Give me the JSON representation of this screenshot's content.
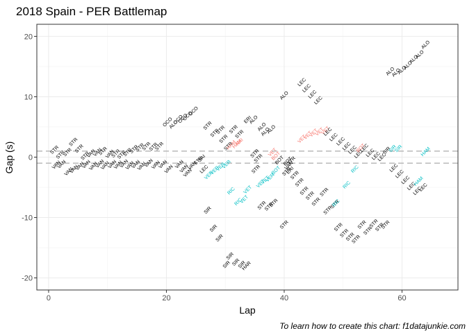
{
  "chart_data": {
    "type": "scatter",
    "title": "2018 Spain - PER Battlemap",
    "xlabel": "Lap",
    "ylabel": "Gap (s)",
    "caption": "To learn how to create this chart: f1datajunkie.com",
    "xlim": [
      -2,
      69.5
    ],
    "ylim": [
      -22,
      22
    ],
    "xticks": [
      0,
      20,
      40,
      60
    ],
    "yticks": [
      -20,
      -10,
      0,
      10,
      20
    ],
    "grid": true,
    "reference_lines": [
      1,
      -1
    ],
    "colors": {
      "ahead": "#000000",
      "pit": "#F8766D",
      "other": "#00BFC4",
      "refline": "#b3b3b3"
    },
    "points": [
      {
        "x": 1,
        "y": 1.2,
        "label": "STR",
        "group": "ahead"
      },
      {
        "x": 1.3,
        "y": -1.3,
        "label": "VAN",
        "group": "ahead"
      },
      {
        "x": 2,
        "y": 0.4,
        "label": "STR",
        "group": "ahead"
      },
      {
        "x": 2.2,
        "y": -1.2,
        "label": "VAN",
        "group": "ahead"
      },
      {
        "x": 3.2,
        "y": 0.8,
        "label": "STR",
        "group": "ahead"
      },
      {
        "x": 4.2,
        "y": 2.5,
        "label": "STR",
        "group": "ahead"
      },
      {
        "x": 3.4,
        "y": -2.4,
        "label": "VAN",
        "group": "ahead"
      },
      {
        "x": 4.3,
        "y": -2.0,
        "label": "VAN",
        "group": "ahead"
      },
      {
        "x": 5.2,
        "y": 1.4,
        "label": "STR",
        "group": "ahead"
      },
      {
        "x": 5.3,
        "y": -1.5,
        "label": "VAN",
        "group": "ahead"
      },
      {
        "x": 6.2,
        "y": 0.2,
        "label": "STR",
        "group": "ahead"
      },
      {
        "x": 6.4,
        "y": -1.2,
        "label": "VAN",
        "group": "ahead"
      },
      {
        "x": 7.2,
        "y": 0.6,
        "label": "VAN",
        "group": "ahead"
      },
      {
        "x": 7.6,
        "y": -1.5,
        "label": "VAN",
        "group": "ahead"
      },
      {
        "x": 8.3,
        "y": 0.8,
        "label": "VAN",
        "group": "ahead"
      },
      {
        "x": 8.7,
        "y": -1.1,
        "label": "VAN",
        "group": "ahead"
      },
      {
        "x": 9.2,
        "y": 1.0,
        "label": "STR",
        "group": "ahead"
      },
      {
        "x": 9.6,
        "y": -1.4,
        "label": "VAN",
        "group": "ahead"
      },
      {
        "x": 10.4,
        "y": 0.5,
        "label": "VAN",
        "group": "ahead"
      },
      {
        "x": 10.8,
        "y": -1.2,
        "label": "VAN",
        "group": "ahead"
      },
      {
        "x": 11.4,
        "y": 0.6,
        "label": "STR",
        "group": "ahead"
      },
      {
        "x": 11.8,
        "y": -1.3,
        "label": "VAN",
        "group": "ahead"
      },
      {
        "x": 12.4,
        "y": 0.4,
        "label": "STR",
        "group": "ahead"
      },
      {
        "x": 12.8,
        "y": -1.1,
        "label": "VAN",
        "group": "ahead"
      },
      {
        "x": 13.4,
        "y": 0.8,
        "label": "STR",
        "group": "ahead"
      },
      {
        "x": 13.8,
        "y": -1.4,
        "label": "VAN",
        "group": "ahead"
      },
      {
        "x": 14.5,
        "y": 1.3,
        "label": "STR",
        "group": "ahead"
      },
      {
        "x": 14.8,
        "y": -1.2,
        "label": "VAN",
        "group": "ahead"
      },
      {
        "x": 15.5,
        "y": 1.6,
        "label": "STR",
        "group": "ahead"
      },
      {
        "x": 15.8,
        "y": -1.5,
        "label": "VAN",
        "group": "ahead"
      },
      {
        "x": 16.6,
        "y": 1.8,
        "label": "STR",
        "group": "ahead"
      },
      {
        "x": 17.0,
        "y": -1.0,
        "label": "VAN",
        "group": "ahead"
      },
      {
        "x": 17.8,
        "y": 1.7,
        "label": "STR",
        "group": "ahead"
      },
      {
        "x": 18.2,
        "y": -1.3,
        "label": "VAN",
        "group": "ahead"
      },
      {
        "x": 18.8,
        "y": 1.8,
        "label": "STR",
        "group": "ahead"
      },
      {
        "x": 19.4,
        "y": -1.2,
        "label": "VAN",
        "group": "ahead"
      },
      {
        "x": 20.4,
        "y": -2.0,
        "label": "VAN",
        "group": "ahead"
      },
      {
        "x": 20.2,
        "y": 5.8,
        "label": "OCO",
        "group": "ahead"
      },
      {
        "x": 21.2,
        "y": 5.4,
        "label": "ALO",
        "group": "ahead"
      },
      {
        "x": 22.0,
        "y": 6.2,
        "label": "OCO",
        "group": "ahead"
      },
      {
        "x": 22.8,
        "y": 6.4,
        "label": "OCO",
        "group": "ahead"
      },
      {
        "x": 23.6,
        "y": 6.8,
        "label": "OCO",
        "group": "ahead"
      },
      {
        "x": 24.6,
        "y": 7.6,
        "label": "OCO",
        "group": "ahead"
      },
      {
        "x": 22.2,
        "y": -1.2,
        "label": "VAN",
        "group": "ahead"
      },
      {
        "x": 23.0,
        "y": -1.9,
        "label": "VAN",
        "group": "ahead"
      },
      {
        "x": 23.6,
        "y": -2.6,
        "label": "VAN",
        "group": "ahead"
      },
      {
        "x": 24.4,
        "y": -1.4,
        "label": "VAN",
        "group": "ahead"
      },
      {
        "x": 25.4,
        "y": -0.6,
        "label": "STR",
        "group": "ahead"
      },
      {
        "x": 26.0,
        "y": -0.2,
        "label": "SAI",
        "group": "ahead"
      },
      {
        "x": 26.4,
        "y": -2.0,
        "label": "LEC",
        "group": "ahead"
      },
      {
        "x": 27.0,
        "y": 5.2,
        "label": "STR",
        "group": "ahead"
      },
      {
        "x": 28.2,
        "y": 4.0,
        "label": "STR",
        "group": "ahead"
      },
      {
        "x": 29.2,
        "y": 4.5,
        "label": "STR",
        "group": "ahead"
      },
      {
        "x": 29.7,
        "y": 3.0,
        "label": "STR",
        "group": "ahead"
      },
      {
        "x": 30.5,
        "y": 1.8,
        "label": "STR",
        "group": "ahead"
      },
      {
        "x": 31.4,
        "y": 4.6,
        "label": "STR",
        "group": "ahead"
      },
      {
        "x": 32.4,
        "y": 3.8,
        "label": "STR",
        "group": "ahead"
      },
      {
        "x": 31.0,
        "y": 2.0,
        "label": "HAM",
        "group": "pit"
      },
      {
        "x": 32.0,
        "y": 2.2,
        "label": "HAM",
        "group": "pit"
      },
      {
        "x": 32.4,
        "y": 2.5,
        "label": "RAI",
        "group": "pit"
      },
      {
        "x": 33.8,
        "y": 6.2,
        "label": "ERI",
        "group": "ahead"
      },
      {
        "x": 34.8,
        "y": 6.2,
        "label": "ALO",
        "group": "ahead"
      },
      {
        "x": 36.8,
        "y": 4.2,
        "label": "ALO",
        "group": "ahead"
      },
      {
        "x": 37.8,
        "y": 4.6,
        "label": "ALO",
        "group": "ahead"
      },
      {
        "x": 36.2,
        "y": 5.0,
        "label": "ALO",
        "group": "ahead"
      },
      {
        "x": 35.0,
        "y": 0.6,
        "label": "STR",
        "group": "ahead"
      },
      {
        "x": 35.6,
        "y": -0.2,
        "label": "STR",
        "group": "ahead"
      },
      {
        "x": 38.0,
        "y": 0.8,
        "label": "VET",
        "group": "pit"
      },
      {
        "x": 38.6,
        "y": 0.2,
        "label": "BOT",
        "group": "pit"
      },
      {
        "x": 39.2,
        "y": -0.5,
        "label": "BOT",
        "group": "ahead"
      },
      {
        "x": 40.0,
        "y": 10.2,
        "label": "ALO",
        "group": "ahead"
      },
      {
        "x": 40.6,
        "y": -0.7,
        "label": "BOT",
        "group": "ahead"
      },
      {
        "x": 41.2,
        "y": -0.6,
        "label": "STR",
        "group": "ahead"
      },
      {
        "x": 40.8,
        "y": -1.4,
        "label": "VAN",
        "group": "ahead"
      },
      {
        "x": 41.0,
        "y": -2.2,
        "label": "ERI",
        "group": "ahead"
      },
      {
        "x": 43.0,
        "y": 12.4,
        "label": "LEC",
        "group": "ahead"
      },
      {
        "x": 43.8,
        "y": 11.4,
        "label": "LEC",
        "group": "ahead"
      },
      {
        "x": 44.8,
        "y": 10.4,
        "label": "LEC",
        "group": "ahead"
      },
      {
        "x": 45.8,
        "y": 9.4,
        "label": "LEC",
        "group": "ahead"
      },
      {
        "x": 43.0,
        "y": 3.0,
        "label": "VET",
        "group": "pit"
      },
      {
        "x": 44.0,
        "y": 3.6,
        "label": "VET",
        "group": "pit"
      },
      {
        "x": 45.0,
        "y": 4.0,
        "label": "VET",
        "group": "pit"
      },
      {
        "x": 46.0,
        "y": 4.2,
        "label": "VET",
        "group": "pit"
      },
      {
        "x": 47.0,
        "y": 4.4,
        "label": "VET",
        "group": "pit"
      },
      {
        "x": 47.4,
        "y": 4.2,
        "label": "LEC",
        "group": "ahead"
      },
      {
        "x": 48.4,
        "y": 3.3,
        "label": "LEC",
        "group": "ahead"
      },
      {
        "x": 49.6,
        "y": 2.6,
        "label": "LEC",
        "group": "ahead"
      },
      {
        "x": 50.6,
        "y": 1.8,
        "label": "LEC",
        "group": "ahead"
      },
      {
        "x": 51.6,
        "y": 1.2,
        "label": "LEC",
        "group": "ahead"
      },
      {
        "x": 52.6,
        "y": 0.5,
        "label": "LEC",
        "group": "ahead"
      },
      {
        "x": 53.6,
        "y": 1.5,
        "label": "LEC",
        "group": "ahead"
      },
      {
        "x": 54.6,
        "y": 0.7,
        "label": "LEC",
        "group": "ahead"
      },
      {
        "x": 55.6,
        "y": 0.2,
        "label": "LEC",
        "group": "ahead"
      },
      {
        "x": 56.6,
        "y": 0.0,
        "label": "LEC",
        "group": "ahead"
      },
      {
        "x": 53.0,
        "y": 1.5,
        "label": "BOT",
        "group": "pit"
      },
      {
        "x": 57.4,
        "y": 1.1,
        "label": "SIR",
        "group": "ahead"
      },
      {
        "x": 58.4,
        "y": 1.4,
        "label": "SIR",
        "group": "other"
      },
      {
        "x": 59.4,
        "y": 1.4,
        "label": "SIR",
        "group": "other"
      },
      {
        "x": 64.0,
        "y": 0.9,
        "label": "HAM",
        "group": "other"
      },
      {
        "x": 58.0,
        "y": 14.2,
        "label": "ALO",
        "group": "ahead"
      },
      {
        "x": 59.0,
        "y": 14.0,
        "label": "ALO",
        "group": "ahead"
      },
      {
        "x": 60.0,
        "y": 14.4,
        "label": "ALO",
        "group": "ahead"
      },
      {
        "x": 61.0,
        "y": 15.2,
        "label": "ALO",
        "group": "ahead"
      },
      {
        "x": 62.0,
        "y": 16.2,
        "label": "ALO",
        "group": "ahead"
      },
      {
        "x": 63.0,
        "y": 17.0,
        "label": "ALO",
        "group": "ahead"
      },
      {
        "x": 64.0,
        "y": 18.6,
        "label": "ALO",
        "group": "ahead"
      },
      {
        "x": 58.6,
        "y": -1.8,
        "label": "LEC",
        "group": "ahead"
      },
      {
        "x": 59.6,
        "y": -2.8,
        "label": "LEC",
        "group": "ahead"
      },
      {
        "x": 60.6,
        "y": -3.8,
        "label": "LEC",
        "group": "ahead"
      },
      {
        "x": 61.6,
        "y": -4.8,
        "label": "LEC",
        "group": "ahead"
      },
      {
        "x": 62.6,
        "y": -5.6,
        "label": "LEC",
        "group": "ahead"
      },
      {
        "x": 63.6,
        "y": -5.0,
        "label": "LEC",
        "group": "ahead"
      },
      {
        "x": 62.8,
        "y": -4.0,
        "label": "HAM",
        "group": "other"
      },
      {
        "x": 27.2,
        "y": -3.0,
        "label": "VER",
        "group": "other"
      },
      {
        "x": 28.2,
        "y": -2.2,
        "label": "VER",
        "group": "other"
      },
      {
        "x": 29.2,
        "y": -1.6,
        "label": "VER",
        "group": "other"
      },
      {
        "x": 30.2,
        "y": -1.2,
        "label": "VER",
        "group": "other"
      },
      {
        "x": 31.0,
        "y": -5.6,
        "label": "RIC",
        "group": "other"
      },
      {
        "x": 32.2,
        "y": -7.4,
        "label": "RIC",
        "group": "other"
      },
      {
        "x": 33.2,
        "y": -7.0,
        "label": "VET",
        "group": "other"
      },
      {
        "x": 33.8,
        "y": -5.4,
        "label": "VET",
        "group": "other"
      },
      {
        "x": 36.0,
        "y": -4.4,
        "label": "VET",
        "group": "other"
      },
      {
        "x": 36.8,
        "y": -3.8,
        "label": "VET",
        "group": "other"
      },
      {
        "x": 37.6,
        "y": -3.4,
        "label": "VER",
        "group": "other"
      },
      {
        "x": 38.6,
        "y": -2.2,
        "label": "BOT",
        "group": "other"
      },
      {
        "x": 35.2,
        "y": -2.0,
        "label": "STR",
        "group": "ahead"
      },
      {
        "x": 36.2,
        "y": -8.0,
        "label": "STR",
        "group": "ahead"
      },
      {
        "x": 37.4,
        "y": -8.2,
        "label": "STR",
        "group": "ahead"
      },
      {
        "x": 38.2,
        "y": -7.6,
        "label": "STR",
        "group": "ahead"
      },
      {
        "x": 40.0,
        "y": -11.2,
        "label": "STR",
        "group": "ahead"
      },
      {
        "x": 40.4,
        "y": -2.4,
        "label": "STR",
        "group": "ahead"
      },
      {
        "x": 41.8,
        "y": -3.0,
        "label": "STR",
        "group": "ahead"
      },
      {
        "x": 42.6,
        "y": -4.2,
        "label": "STR",
        "group": "ahead"
      },
      {
        "x": 43.4,
        "y": -5.6,
        "label": "STR",
        "group": "ahead"
      },
      {
        "x": 44.4,
        "y": -6.4,
        "label": "STR",
        "group": "ahead"
      },
      {
        "x": 45.4,
        "y": -7.4,
        "label": "STR",
        "group": "ahead"
      },
      {
        "x": 46.8,
        "y": -5.8,
        "label": "STR",
        "group": "ahead"
      },
      {
        "x": 47.4,
        "y": -8.8,
        "label": "STR",
        "group": "ahead"
      },
      {
        "x": 48.6,
        "y": -7.8,
        "label": "STR",
        "group": "ahead"
      },
      {
        "x": 48.8,
        "y": -7.6,
        "label": "RIC",
        "group": "other"
      },
      {
        "x": 50.6,
        "y": -4.6,
        "label": "RIC",
        "group": "other"
      },
      {
        "x": 52.0,
        "y": -2.0,
        "label": "RIC",
        "group": "other"
      },
      {
        "x": 49.2,
        "y": -11.6,
        "label": "STR",
        "group": "ahead"
      },
      {
        "x": 50.2,
        "y": -12.6,
        "label": "STR",
        "group": "ahead"
      },
      {
        "x": 51.2,
        "y": -13.2,
        "label": "STR",
        "group": "ahead"
      },
      {
        "x": 52.2,
        "y": -13.6,
        "label": "STR",
        "group": "ahead"
      },
      {
        "x": 53.2,
        "y": -11.2,
        "label": "STR",
        "group": "ahead"
      },
      {
        "x": 54.2,
        "y": -12.2,
        "label": "STR",
        "group": "ahead"
      },
      {
        "x": 55.2,
        "y": -11.0,
        "label": "STR",
        "group": "ahead"
      },
      {
        "x": 56.2,
        "y": -11.6,
        "label": "STR",
        "group": "ahead"
      },
      {
        "x": 57.2,
        "y": -11.2,
        "label": "STR",
        "group": "ahead"
      },
      {
        "x": 27.0,
        "y": -8.8,
        "label": "SIR",
        "group": "ahead"
      },
      {
        "x": 28.0,
        "y": -11.8,
        "label": "SIR",
        "group": "ahead"
      },
      {
        "x": 29.0,
        "y": -13.4,
        "label": "SIR",
        "group": "ahead"
      },
      {
        "x": 30.8,
        "y": -16.4,
        "label": "SIR",
        "group": "ahead"
      },
      {
        "x": 31.8,
        "y": -17.4,
        "label": "SIR",
        "group": "ahead"
      },
      {
        "x": 30.2,
        "y": -17.8,
        "label": "SIR",
        "group": "ahead"
      },
      {
        "x": 32.8,
        "y": -17.8,
        "label": "SIR",
        "group": "ahead"
      },
      {
        "x": 33.6,
        "y": -18.0,
        "label": "HAR",
        "group": "ahead"
      }
    ]
  }
}
